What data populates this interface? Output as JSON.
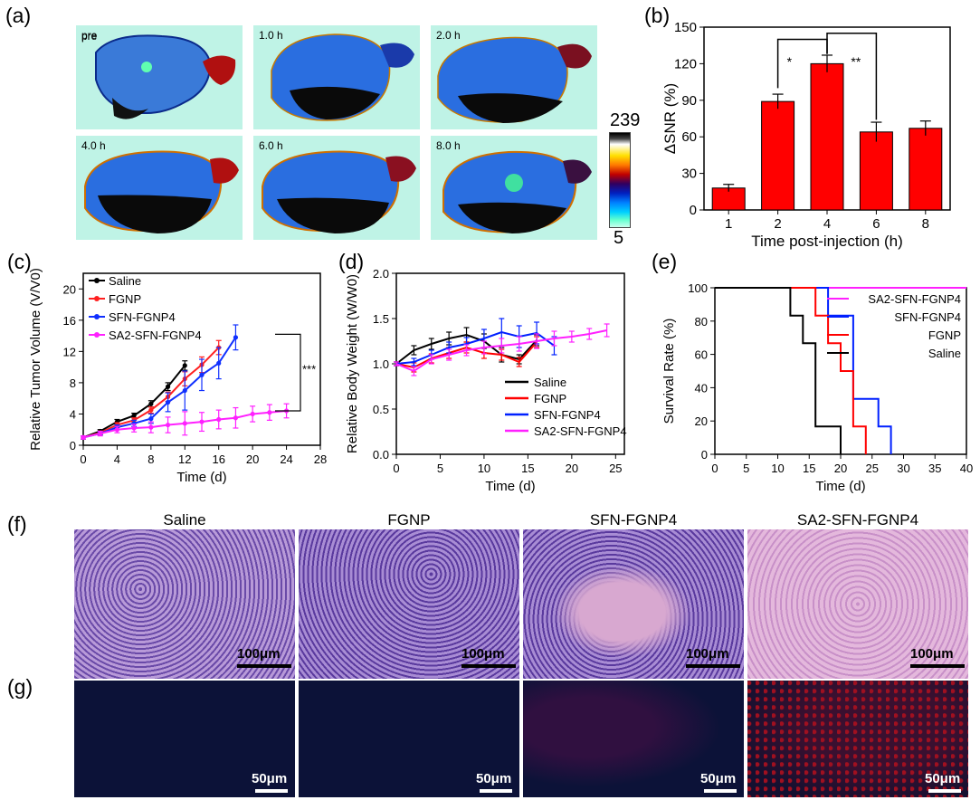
{
  "panels": {
    "a": "(a)",
    "b": "(b)",
    "c": "(c)",
    "d": "(d)",
    "e": "(e)",
    "f": "(f)",
    "g": "(g)"
  },
  "mri": {
    "tiles": [
      {
        "label": "pre"
      },
      {
        "label": "1.0 h"
      },
      {
        "label": "2.0 h"
      },
      {
        "label": "4.0 h"
      },
      {
        "label": "6.0 h"
      },
      {
        "label": "8.0 h"
      }
    ],
    "colorbar": {
      "max": "239",
      "min": "5"
    }
  },
  "chart_data": [
    {
      "id": "b",
      "type": "bar",
      "categories": [
        "1",
        "2",
        "4",
        "6",
        "8"
      ],
      "values": [
        18,
        89,
        120,
        64,
        67
      ],
      "errors": [
        3,
        6,
        7,
        8,
        6
      ],
      "xlabel": "Time post-injection (h)",
      "ylabel": "ΔSNR (%)",
      "ylim": [
        0,
        150
      ],
      "yticks": [
        0,
        30,
        60,
        90,
        120,
        150
      ],
      "color": "#ff0000",
      "annotations": [
        "*",
        "**"
      ]
    },
    {
      "id": "c",
      "type": "line",
      "xlabel": "Time (d)",
      "ylabel": "Relative Tumor Volume (V/V0)",
      "xlim": [
        0,
        28
      ],
      "ylim": [
        0,
        22
      ],
      "xticks": [
        0,
        4,
        8,
        12,
        16,
        20,
        24,
        28
      ],
      "yticks": [
        0,
        4,
        8,
        12,
        16,
        20
      ],
      "legend": "top-left",
      "annotation": "***",
      "series": [
        {
          "name": "Saline",
          "color": "#000000",
          "x": [
            0,
            2,
            4,
            6,
            8,
            10,
            12
          ],
          "y": [
            1,
            1.8,
            3.0,
            3.8,
            5.3,
            7.5,
            10.2
          ],
          "err": [
            0.2,
            0.2,
            0.3,
            0.3,
            0.4,
            0.5,
            0.6
          ]
        },
        {
          "name": "FGNP",
          "color": "#ff2020",
          "x": [
            0,
            2,
            4,
            6,
            8,
            10,
            12,
            14,
            16
          ],
          "y": [
            1,
            1.6,
            2.6,
            3.2,
            4.5,
            6.2,
            8.5,
            10.3,
            12.5
          ],
          "err": [
            0.2,
            0.2,
            0.3,
            0.3,
            0.4,
            0.6,
            0.9,
            1.0,
            0.9
          ]
        },
        {
          "name": "SFN-FGNP4",
          "color": "#1030ff",
          "x": [
            0,
            2,
            4,
            6,
            8,
            10,
            12,
            14,
            16,
            18
          ],
          "y": [
            1,
            1.5,
            2.3,
            2.8,
            3.4,
            5.5,
            7.0,
            9.0,
            10.5,
            13.8
          ],
          "err": [
            0.2,
            0.2,
            0.3,
            0.4,
            0.6,
            1.2,
            2.5,
            2.0,
            2.0,
            1.6
          ]
        },
        {
          "name": "SA2-SFN-FGNP4",
          "color": "#ff20ff",
          "x": [
            0,
            2,
            4,
            6,
            8,
            10,
            12,
            14,
            16,
            18,
            20,
            22,
            24
          ],
          "y": [
            1,
            1.5,
            2.0,
            2.2,
            2.3,
            2.6,
            2.8,
            3.0,
            3.3,
            3.5,
            4.0,
            4.2,
            4.4
          ],
          "err": [
            0.2,
            0.3,
            0.4,
            0.5,
            0.7,
            1.0,
            1.5,
            1.2,
            1.2,
            1.3,
            1.0,
            1.0,
            0.9
          ]
        }
      ]
    },
    {
      "id": "d",
      "type": "line",
      "xlabel": "Time (d)",
      "ylabel": "Relative Body Weight (W/W0)",
      "xlim": [
        0,
        26
      ],
      "ylim": [
        0,
        2.0
      ],
      "xticks": [
        0,
        5,
        10,
        15,
        20,
        25
      ],
      "yticks": [
        0.0,
        0.5,
        1.0,
        1.5,
        2.0
      ],
      "legend": "bottom-right",
      "series": [
        {
          "name": "Saline",
          "color": "#000000",
          "x": [
            0,
            2,
            4,
            6,
            8,
            10,
            12,
            14,
            16
          ],
          "y": [
            1,
            1.15,
            1.22,
            1.28,
            1.32,
            1.25,
            1.1,
            1.05,
            1.26
          ],
          "err": [
            0.02,
            0.05,
            0.06,
            0.07,
            0.08,
            0.08,
            0.08,
            0.05,
            0.06
          ]
        },
        {
          "name": "FGNP",
          "color": "#ff0000",
          "x": [
            0,
            2,
            4,
            6,
            8,
            10,
            12,
            14,
            16
          ],
          "y": [
            1,
            0.96,
            1.06,
            1.12,
            1.18,
            1.12,
            1.1,
            1.02,
            1.24
          ],
          "err": [
            0.02,
            0.05,
            0.05,
            0.06,
            0.06,
            0.06,
            0.06,
            0.05,
            0.06
          ]
        },
        {
          "name": "SFN-FGNP4",
          "color": "#0020ff",
          "x": [
            0,
            2,
            4,
            6,
            8,
            10,
            12,
            14,
            16,
            18
          ],
          "y": [
            1,
            1.02,
            1.1,
            1.18,
            1.22,
            1.28,
            1.35,
            1.3,
            1.34,
            1.2
          ],
          "err": [
            0.02,
            0.04,
            0.05,
            0.06,
            0.07,
            0.1,
            0.15,
            0.12,
            0.12,
            0.1
          ]
        },
        {
          "name": "SA2-SFN-FGNP4",
          "color": "#ff20ff",
          "x": [
            0,
            2,
            4,
            6,
            8,
            10,
            12,
            14,
            16,
            18,
            20,
            22,
            24
          ],
          "y": [
            1,
            0.92,
            1.05,
            1.1,
            1.15,
            1.18,
            1.2,
            1.22,
            1.25,
            1.28,
            1.3,
            1.33,
            1.37
          ],
          "err": [
            0.02,
            0.05,
            0.05,
            0.06,
            0.06,
            0.07,
            0.08,
            0.08,
            0.08,
            0.08,
            0.06,
            0.06,
            0.07
          ]
        }
      ]
    },
    {
      "id": "e",
      "type": "line",
      "xlabel": "Time (d)",
      "ylabel": "Survival Rate (%)",
      "xlim": [
        0,
        40
      ],
      "ylim": [
        0,
        100
      ],
      "xticks": [
        0,
        5,
        10,
        15,
        20,
        25,
        30,
        35,
        40
      ],
      "yticks": [
        0,
        20,
        40,
        60,
        80,
        100
      ],
      "legend": "top-right",
      "series": [
        {
          "name": "SA2-SFN-FGNP4",
          "color": "#ff20ff",
          "steps": [
            [
              0,
              100
            ],
            [
              40,
              100
            ]
          ]
        },
        {
          "name": "SFN-FGNP4",
          "color": "#0020ff",
          "steps": [
            [
              0,
              100
            ],
            [
              18,
              100
            ],
            [
              18,
              83.3
            ],
            [
              22,
              83.3
            ],
            [
              22,
              33.3
            ],
            [
              26,
              33.3
            ],
            [
              26,
              16.7
            ],
            [
              28,
              16.7
            ],
            [
              28,
              0
            ]
          ]
        },
        {
          "name": "FGNP",
          "color": "#ff0000",
          "steps": [
            [
              0,
              100
            ],
            [
              16,
              100
            ],
            [
              16,
              83.3
            ],
            [
              18,
              83.3
            ],
            [
              18,
              66.7
            ],
            [
              20,
              66.7
            ],
            [
              20,
              50
            ],
            [
              22,
              50
            ],
            [
              22,
              16.7
            ],
            [
              24,
              16.7
            ],
            [
              24,
              0
            ]
          ]
        },
        {
          "name": "Saline",
          "color": "#000000",
          "steps": [
            [
              0,
              100
            ],
            [
              12,
              100
            ],
            [
              12,
              83.3
            ],
            [
              14,
              83.3
            ],
            [
              14,
              66.7
            ],
            [
              16,
              66.7
            ],
            [
              16,
              16.7
            ],
            [
              20,
              16.7
            ],
            [
              20,
              0
            ]
          ]
        }
      ]
    }
  ],
  "histology": {
    "titles": [
      "Saline",
      "FGNP",
      "SFN-FGNP4",
      "SA2-SFN-FGNP4"
    ],
    "he_scale": "100μm",
    "fl_scale": "50μm"
  }
}
